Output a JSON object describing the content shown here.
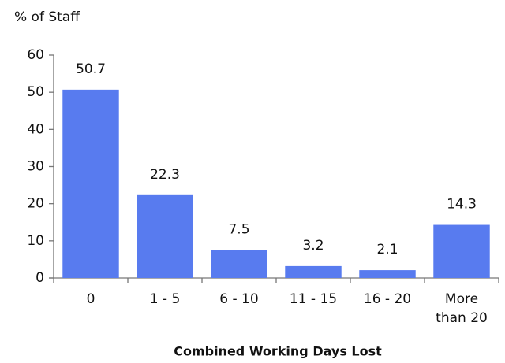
{
  "chart_data": {
    "type": "bar",
    "y_axis_label": "% of Staff",
    "x_axis_label": "Combined Working Days Lost",
    "categories": [
      "0",
      "1 - 5",
      "6 - 10",
      "11 - 15",
      "16 - 20",
      "More than 20"
    ],
    "values": [
      50.7,
      22.3,
      7.5,
      3.2,
      2.1,
      14.3
    ],
    "color": "#587bef",
    "ylim": [
      0,
      60
    ],
    "yticks": [
      0,
      10,
      20,
      30,
      40,
      50,
      60
    ],
    "grid": false
  }
}
